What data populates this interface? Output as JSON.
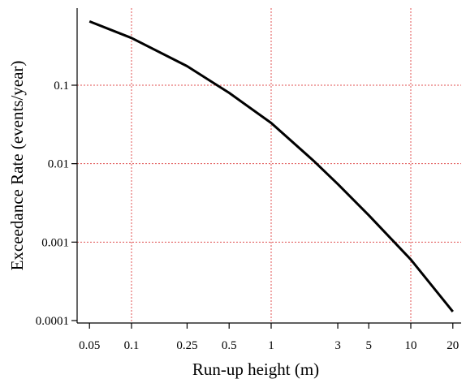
{
  "chart_data": {
    "type": "line",
    "title": "",
    "xlabel": "Run-up height (m)",
    "ylabel": "Exceedance Rate (events/year)",
    "xscale": "log",
    "yscale": "log",
    "xlim": [
      0.04,
      25
    ],
    "ylim": [
      0.0001,
      1.2
    ],
    "grid": true,
    "grid_color": "#e05050",
    "line_color": "#000000",
    "x_ticks": [
      0.05,
      0.1,
      0.25,
      0.5,
      1,
      3,
      5,
      10,
      20
    ],
    "x_tick_labels": [
      "0.05",
      "0.1",
      "0.25",
      "0.5",
      "1",
      "3",
      "5",
      "10",
      "20"
    ],
    "x_grid": [
      0.1,
      1,
      10
    ],
    "y_ticks": [
      0.0001,
      0.001,
      0.01,
      0.1
    ],
    "y_tick_labels": [
      "0.0001",
      "0.001",
      "0.01",
      "0.1"
    ],
    "y_grid": [
      0.001,
      0.01,
      0.1
    ],
    "series": [
      {
        "x": [
          0.05,
          0.1,
          0.25,
          0.5,
          1,
          2,
          3,
          5,
          10,
          20
        ],
        "y": [
          0.65,
          0.4,
          0.175,
          0.08,
          0.033,
          0.011,
          0.0055,
          0.0022,
          0.0006,
          0.00013
        ]
      }
    ]
  }
}
